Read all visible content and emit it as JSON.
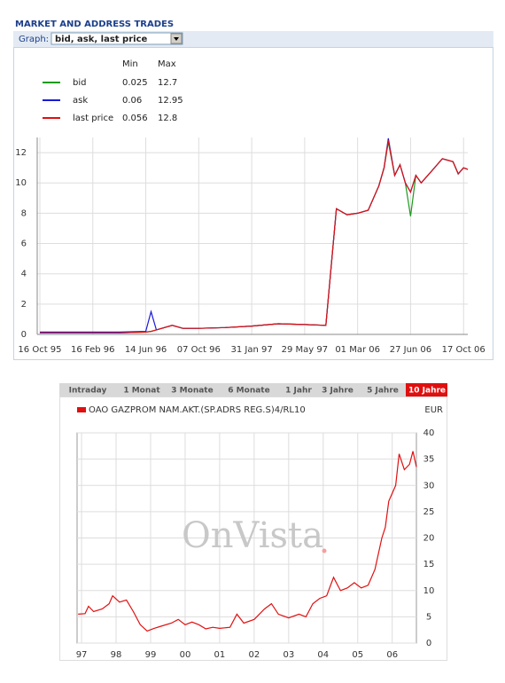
{
  "header": {
    "title": "MARKET AND ADDRESS TRADES",
    "graph_label": "Graph:",
    "graph_selected": "bid, ask, last price"
  },
  "tabs": [
    {
      "label": "Intraday",
      "active": false
    },
    {
      "label": "1 Monat",
      "active": false
    },
    {
      "label": "3 Monate",
      "active": false
    },
    {
      "label": "6 Monate",
      "active": false
    },
    {
      "label": "1 Jahr",
      "active": false
    },
    {
      "label": "3 Jahre",
      "active": false
    },
    {
      "label": "5 Jahre",
      "active": false
    },
    {
      "label": "10 Jahre",
      "active": true
    }
  ],
  "chart_data": [
    {
      "type": "line",
      "legend_headers": [
        "Min",
        "Max"
      ],
      "x": [
        0,
        0.5,
        1,
        1.5,
        2.0,
        2.1,
        2.2,
        2.5,
        2.7,
        3,
        3.5,
        4,
        4.5,
        5,
        5.4,
        5.6,
        5.8,
        6.0,
        6.2,
        6.4,
        6.5,
        6.58,
        6.7,
        6.8,
        6.9,
        7.0,
        7.1,
        7.2,
        7.4,
        7.6,
        7.8,
        7.9,
        8.0,
        8.08
      ],
      "series": [
        {
          "name": "bid",
          "color": "#1a9a1a",
          "min": 0.025,
          "max": 12.7,
          "values": [
            0.1,
            0.1,
            0.1,
            0.1,
            0.15,
            0.2,
            0.3,
            0.6,
            0.4,
            0.4,
            0.45,
            0.55,
            0.7,
            0.65,
            0.6,
            8.3,
            7.9,
            8.0,
            8.2,
            9.8,
            11.0,
            12.7,
            10.5,
            11.2,
            10.0,
            7.8,
            10.5,
            10.0,
            10.8,
            11.6,
            11.4,
            10.6,
            11.0,
            10.9
          ]
        },
        {
          "name": "ask",
          "color": "#1a1ad8",
          "min": 0.06,
          "max": 12.95,
          "values": [
            0.15,
            0.15,
            0.15,
            0.15,
            0.2,
            1.5,
            0.3,
            0.6,
            0.4,
            0.4,
            0.45,
            0.55,
            0.7,
            0.65,
            0.6,
            8.3,
            7.9,
            8.0,
            8.2,
            9.8,
            11.0,
            12.95,
            10.5,
            11.2,
            10.0,
            9.4,
            10.5,
            10.0,
            10.8,
            11.6,
            11.4,
            10.6,
            11.0,
            10.9
          ]
        },
        {
          "name": "last price",
          "color": "#e01010",
          "min": 0.056,
          "max": 12.8,
          "values": [
            0.1,
            0.1,
            0.1,
            0.1,
            0.15,
            0.2,
            0.3,
            0.6,
            0.4,
            0.4,
            0.45,
            0.55,
            0.7,
            0.65,
            0.6,
            8.3,
            7.9,
            8.0,
            8.2,
            9.8,
            11.0,
            12.8,
            10.5,
            11.2,
            10.0,
            9.4,
            10.5,
            10.0,
            10.8,
            11.6,
            11.4,
            10.6,
            11.0,
            10.9
          ]
        }
      ],
      "xlim": [
        -0.05,
        8.08
      ],
      "xticks": [
        {
          "value": 0,
          "label": "16 Oct 95"
        },
        {
          "value": 1,
          "label": "16 Feb 96"
        },
        {
          "value": 2,
          "label": "14 Jun 96"
        },
        {
          "value": 3,
          "label": "07 Oct 96"
        },
        {
          "value": 4,
          "label": "31 Jan 97"
        },
        {
          "value": 5,
          "label": "29 May 97"
        },
        {
          "value": 6,
          "label": "01 Mar 06"
        },
        {
          "value": 7,
          "label": "27 Jun 06"
        },
        {
          "value": 8,
          "label": "17 Oct 06"
        }
      ],
      "ylim": [
        0,
        13
      ],
      "yticks": [
        0,
        2,
        4,
        6,
        8,
        10,
        12
      ],
      "grid": true
    },
    {
      "type": "line",
      "unit": "EUR",
      "watermark": "OnVista",
      "x": [
        1996.9,
        1997.1,
        1997.2,
        1997.35,
        1997.6,
        1997.8,
        1997.9,
        1998.1,
        1998.3,
        1998.5,
        1998.7,
        1998.9,
        1999.1,
        1999.3,
        1999.6,
        1999.8,
        2000.0,
        2000.2,
        2000.4,
        2000.6,
        2000.8,
        2001.0,
        2001.3,
        2001.5,
        2001.7,
        2002.0,
        2002.3,
        2002.5,
        2002.7,
        2003.0,
        2003.3,
        2003.5,
        2003.7,
        2003.9,
        2004.1,
        2004.3,
        2004.5,
        2004.7,
        2004.9,
        2005.1,
        2005.3,
        2005.5,
        2005.7,
        2005.8,
        2005.9,
        2006.1,
        2006.2,
        2006.35,
        2006.5,
        2006.6,
        2006.7
      ],
      "series": [
        {
          "name": "OAO GAZPROM NAM.AKT.(SP.ADRS REG.S)4/RL10",
          "color": "#e01010",
          "values": [
            5.5,
            5.6,
            7,
            6,
            6.5,
            7.5,
            9,
            7.8,
            8.2,
            6,
            3.5,
            2.3,
            2.8,
            3.2,
            3.8,
            4.5,
            3.5,
            4.0,
            3.5,
            2.7,
            3.0,
            2.8,
            3.0,
            5.5,
            3.8,
            4.5,
            6.5,
            7.5,
            5.5,
            4.8,
            5.5,
            5.0,
            7.5,
            8.5,
            9.0,
            12.5,
            10.0,
            10.5,
            11.5,
            10.5,
            11.0,
            14,
            20,
            22,
            27,
            30,
            36,
            33,
            34,
            36.5,
            33.5
          ]
        }
      ],
      "xlim": [
        1996.87,
        2006.7
      ],
      "xticks": [
        {
          "value": 1997,
          "label": "97"
        },
        {
          "value": 1998,
          "label": "98"
        },
        {
          "value": 1999,
          "label": "99"
        },
        {
          "value": 2000,
          "label": "00"
        },
        {
          "value": 2001,
          "label": "01"
        },
        {
          "value": 2002,
          "label": "02"
        },
        {
          "value": 2003,
          "label": "03"
        },
        {
          "value": 2004,
          "label": "04"
        },
        {
          "value": 2005,
          "label": "05"
        },
        {
          "value": 2006,
          "label": "06"
        }
      ],
      "ylim": [
        0,
        40
      ],
      "yticks": [
        0,
        5,
        10,
        15,
        20,
        25,
        30,
        35,
        40
      ],
      "grid": true
    }
  ]
}
